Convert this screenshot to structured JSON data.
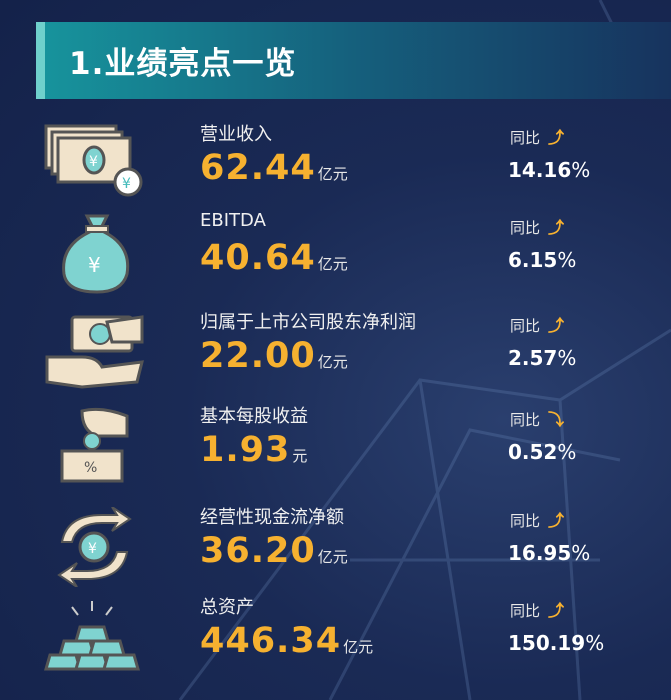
{
  "title": "1.业绩亮点一览",
  "yoy_label": "同比",
  "items": [
    {
      "label": "营业收入",
      "value": "62.44",
      "unit": "亿元",
      "change": "14.16",
      "direction": "up",
      "icon": "money-bills-icon"
    },
    {
      "label": "EBITDA",
      "value": "40.64",
      "unit": "亿元",
      "change": "6.15",
      "direction": "up",
      "icon": "money-bag-icon"
    },
    {
      "label": "归属于上市公司股东净利润",
      "value": "22.00",
      "unit": "亿元",
      "change": "2.57",
      "direction": "up",
      "icon": "hand-money-icon"
    },
    {
      "label": "基本每股收益",
      "value": "1.93",
      "unit": "元",
      "change": "0.52",
      "direction": "down",
      "icon": "coin-box-icon"
    },
    {
      "label": "经营性现金流净额",
      "value": "36.20",
      "unit": "亿元",
      "change": "16.95",
      "direction": "up",
      "icon": "cash-cycle-icon"
    },
    {
      "label": "总资产",
      "value": "446.34",
      "unit": "亿元",
      "change": "150.19",
      "direction": "up",
      "icon": "gold-bars-icon"
    }
  ],
  "percent_sign": "%",
  "colors": {
    "accent": "#f6b130",
    "teal": "#6fd0cc",
    "bg": "#14224a"
  }
}
